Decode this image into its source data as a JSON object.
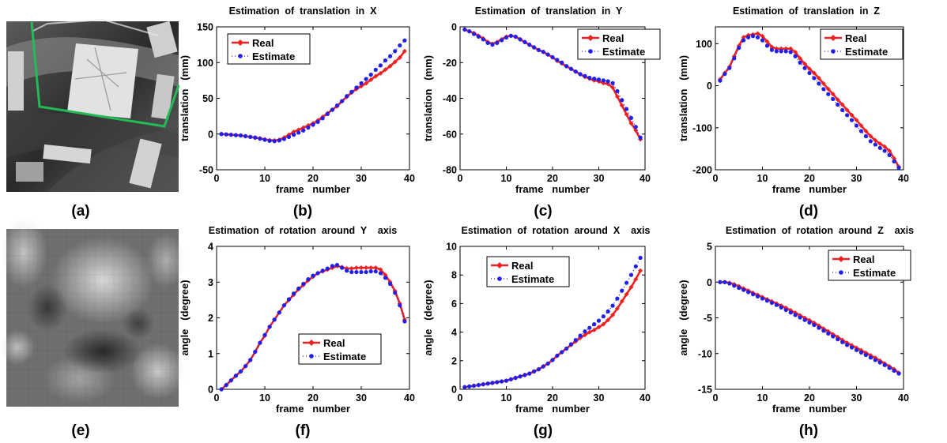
{
  "figure_labels": [
    "(a)",
    "(b)",
    "(c)",
    "(d)",
    "(e)",
    "(f)",
    "(g)",
    "(h)"
  ],
  "images": [
    {
      "label": "(a)",
      "description": "grayscale photo of a textured planar scene with a green outlined quadrilateral"
    },
    {
      "label": "(e)",
      "description": "blurry low-resolution grayscale patch"
    }
  ],
  "colors": {
    "real": "#ee2222",
    "estimate": "#1f1fee",
    "green_outline": "#22bb55"
  },
  "chart_data": [
    {
      "type": "line",
      "label": "(b)",
      "title": "Estimation  of  translation  in  X",
      "xlabel": "frame   number",
      "ylabel": "translation   (mm)",
      "xlim": [
        0,
        40
      ],
      "ylim": [
        -50,
        150
      ],
      "xticks": [
        0,
        10,
        20,
        30,
        40
      ],
      "yticks": [
        -50,
        0,
        50,
        100,
        150
      ],
      "legend": [
        "Real",
        "Estimate"
      ],
      "legend_position": "top-left",
      "x": [
        1,
        2,
        3,
        4,
        5,
        6,
        7,
        8,
        9,
        10,
        11,
        12,
        13,
        14,
        15,
        16,
        17,
        18,
        19,
        20,
        21,
        22,
        23,
        24,
        25,
        26,
        27,
        28,
        29,
        30,
        31,
        32,
        33,
        34,
        35,
        36,
        37,
        38,
        39
      ],
      "series": [
        {
          "name": "Real",
          "values": [
            0,
            -0.5,
            -1,
            -1.5,
            -2,
            -3,
            -4,
            -5,
            -6,
            -7.5,
            -8.5,
            -9,
            -8,
            -5,
            -1,
            3,
            6,
            9,
            12,
            15,
            19,
            24,
            29,
            34,
            39,
            46,
            52,
            58,
            63,
            67,
            71,
            76,
            81,
            85,
            90,
            95,
            101,
            107,
            116
          ]
        },
        {
          "name": "Estimate",
          "values": [
            0,
            -0.5,
            -1,
            -1.5,
            -2,
            -3,
            -4,
            -5,
            -6.5,
            -8,
            -9.5,
            -10,
            -9,
            -7,
            -4,
            -1,
            2,
            5,
            9,
            13,
            17,
            22,
            28,
            34,
            40,
            46,
            53,
            59,
            65,
            71,
            77,
            83,
            90,
            96,
            103,
            109,
            116,
            124,
            131
          ]
        }
      ]
    },
    {
      "type": "line",
      "label": "(c)",
      "title": "Estimation  of  translation  in  Y",
      "xlabel": "frame   number",
      "ylabel": "translation   (mm)",
      "xlim": [
        0,
        40
      ],
      "ylim": [
        -80,
        0
      ],
      "xticks": [
        0,
        10,
        20,
        30,
        40
      ],
      "yticks": [
        -80,
        -60,
        -40,
        -20,
        0
      ],
      "legend": [
        "Real",
        "Estimate"
      ],
      "legend_position": "top-right",
      "x": [
        1,
        2,
        3,
        4,
        5,
        6,
        7,
        8,
        9,
        10,
        11,
        12,
        13,
        14,
        15,
        16,
        17,
        18,
        19,
        20,
        21,
        22,
        23,
        24,
        25,
        26,
        27,
        28,
        29,
        30,
        31,
        32,
        33,
        34,
        35,
        36,
        37,
        38,
        39
      ],
      "series": [
        {
          "name": "Real",
          "values": [
            -1.5,
            -2.5,
            -3.5,
            -5,
            -6.5,
            -8.5,
            -9.5,
            -8.5,
            -7,
            -5.5,
            -5,
            -5.5,
            -7,
            -8.5,
            -10,
            -11.5,
            -13,
            -14,
            -15.5,
            -17,
            -19,
            -20.5,
            -22,
            -23.5,
            -25,
            -26.5,
            -28,
            -29,
            -30,
            -30.5,
            -31.5,
            -32,
            -34,
            -39,
            -44,
            -49,
            -54,
            -58,
            -63
          ]
        },
        {
          "name": "Estimate",
          "values": [
            -1.5,
            -2.5,
            -4,
            -5.5,
            -7,
            -9,
            -10,
            -9,
            -7.5,
            -6,
            -5,
            -5.5,
            -7,
            -8.5,
            -10,
            -11.5,
            -13,
            -14,
            -15.5,
            -17,
            -18.5,
            -20,
            -22,
            -23.5,
            -25,
            -26.5,
            -27.5,
            -28.5,
            -29,
            -29.5,
            -30,
            -30.5,
            -31.5,
            -36,
            -41,
            -46,
            -51,
            -56,
            -62
          ]
        }
      ]
    },
    {
      "type": "line",
      "label": "(d)",
      "title": "Estimation  of  translation  in  Z",
      "xlabel": "frame   number",
      "ylabel": "translation   (mm)",
      "xlim": [
        0,
        40
      ],
      "ylim": [
        -200,
        140
      ],
      "xticks": [
        0,
        10,
        20,
        30,
        40
      ],
      "yticks": [
        -200,
        -100,
        0,
        100
      ],
      "legend": [
        "Real",
        "Estimate"
      ],
      "legend_position": "top-right",
      "x": [
        1,
        2,
        3,
        4,
        5,
        6,
        7,
        8,
        9,
        10,
        11,
        12,
        13,
        14,
        15,
        16,
        17,
        18,
        19,
        20,
        21,
        22,
        23,
        24,
        25,
        26,
        27,
        28,
        29,
        30,
        31,
        32,
        33,
        34,
        35,
        36,
        37,
        38,
        39
      ],
      "series": [
        {
          "name": "Real",
          "values": [
            15,
            30,
            45,
            70,
            95,
            115,
            120,
            122,
            124,
            118,
            105,
            92,
            88,
            88,
            88,
            88,
            80,
            65,
            52,
            40,
            30,
            18,
            5,
            -8,
            -20,
            -33,
            -45,
            -58,
            -70,
            -82,
            -95,
            -108,
            -120,
            -130,
            -138,
            -145,
            -155,
            -173,
            -193
          ]
        },
        {
          "name": "Estimate",
          "values": [
            12,
            28,
            42,
            65,
            90,
            108,
            115,
            118,
            115,
            108,
            95,
            85,
            82,
            82,
            82,
            80,
            70,
            55,
            42,
            30,
            18,
            5,
            -8,
            -20,
            -32,
            -45,
            -58,
            -70,
            -82,
            -95,
            -108,
            -120,
            -132,
            -140,
            -148,
            -155,
            -165,
            -180,
            -195
          ]
        }
      ]
    },
    {
      "type": "line",
      "label": "(f)",
      "title": "Estimation  of  rotation  around  Y    axis",
      "xlabel": "frame   number",
      "ylabel": "angle   (degree)",
      "xlim": [
        0,
        40
      ],
      "ylim": [
        0,
        4
      ],
      "xticks": [
        0,
        10,
        20,
        30,
        40
      ],
      "yticks": [
        0,
        1,
        2,
        3,
        4
      ],
      "legend": [
        "Real",
        "Estimate"
      ],
      "legend_position": "bottom-right",
      "x": [
        1,
        2,
        3,
        4,
        5,
        6,
        7,
        8,
        9,
        10,
        11,
        12,
        13,
        14,
        15,
        16,
        17,
        18,
        19,
        20,
        21,
        22,
        23,
        24,
        25,
        26,
        27,
        28,
        29,
        30,
        31,
        32,
        33,
        34,
        35,
        36,
        37,
        38,
        39
      ],
      "series": [
        {
          "name": "Real",
          "values": [
            0,
            0.12,
            0.25,
            0.38,
            0.5,
            0.65,
            0.82,
            1.05,
            1.3,
            1.5,
            1.75,
            1.95,
            2.15,
            2.35,
            2.5,
            2.65,
            2.8,
            2.92,
            3.05,
            3.15,
            3.25,
            3.3,
            3.35,
            3.4,
            3.45,
            3.42,
            3.38,
            3.38,
            3.4,
            3.4,
            3.4,
            3.4,
            3.4,
            3.35,
            3.2,
            3.0,
            2.75,
            2.4,
            1.95
          ]
        },
        {
          "name": "Estimate",
          "values": [
            0,
            0.12,
            0.25,
            0.38,
            0.5,
            0.65,
            0.82,
            1.05,
            1.3,
            1.52,
            1.75,
            1.95,
            2.15,
            2.35,
            2.52,
            2.68,
            2.82,
            2.95,
            3.08,
            3.18,
            3.25,
            3.32,
            3.38,
            3.45,
            3.48,
            3.4,
            3.32,
            3.28,
            3.28,
            3.28,
            3.28,
            3.3,
            3.3,
            3.25,
            3.12,
            2.95,
            2.7,
            2.35,
            1.9
          ]
        }
      ]
    },
    {
      "type": "line",
      "label": "(g)",
      "title": "Estimation  of  rotation  around  X    axis",
      "xlabel": "frame   number",
      "ylabel": "angle   (degree)",
      "xlim": [
        0,
        40
      ],
      "ylim": [
        0,
        10
      ],
      "xticks": [
        0,
        10,
        20,
        30,
        40
      ],
      "yticks": [
        0,
        2,
        4,
        6,
        8,
        10
      ],
      "legend": [
        "Real",
        "Estimate"
      ],
      "legend_position": "top-left",
      "x": [
        1,
        2,
        3,
        4,
        5,
        6,
        7,
        8,
        9,
        10,
        11,
        12,
        13,
        14,
        15,
        16,
        17,
        18,
        19,
        20,
        21,
        22,
        23,
        24,
        25,
        26,
        27,
        28,
        29,
        30,
        31,
        32,
        33,
        34,
        35,
        36,
        37,
        38,
        39
      ],
      "series": [
        {
          "name": "Real",
          "values": [
            0.15,
            0.2,
            0.25,
            0.3,
            0.35,
            0.4,
            0.45,
            0.5,
            0.55,
            0.6,
            0.7,
            0.8,
            0.9,
            1.0,
            1.1,
            1.25,
            1.4,
            1.6,
            1.8,
            2.05,
            2.35,
            2.6,
            2.85,
            3.1,
            3.35,
            3.6,
            3.8,
            4.0,
            4.15,
            4.35,
            4.55,
            4.85,
            5.2,
            5.65,
            6.15,
            6.65,
            7.15,
            7.7,
            8.3
          ]
        },
        {
          "name": "Estimate",
          "values": [
            0.15,
            0.2,
            0.25,
            0.3,
            0.35,
            0.4,
            0.45,
            0.5,
            0.55,
            0.6,
            0.7,
            0.8,
            0.9,
            1.0,
            1.1,
            1.25,
            1.4,
            1.6,
            1.8,
            2.05,
            2.35,
            2.6,
            2.85,
            3.15,
            3.45,
            3.75,
            4.05,
            4.3,
            4.55,
            4.8,
            5.1,
            5.45,
            5.85,
            6.35,
            6.9,
            7.45,
            8.0,
            8.6,
            9.2
          ]
        }
      ]
    },
    {
      "type": "line",
      "label": "(h)",
      "title": "Estimation  of  rotation  around  Z    axis",
      "xlabel": "frame   number",
      "ylabel": "angle   (degree)",
      "xlim": [
        0,
        40
      ],
      "ylim": [
        -15,
        5
      ],
      "xticks": [
        0,
        10,
        20,
        30,
        40
      ],
      "yticks": [
        -15,
        -10,
        -5,
        0,
        5
      ],
      "legend": [
        "Real",
        "Estimate"
      ],
      "legend_position": "top-right",
      "x": [
        1,
        2,
        3,
        4,
        5,
        6,
        7,
        8,
        9,
        10,
        11,
        12,
        13,
        14,
        15,
        16,
        17,
        18,
        19,
        20,
        21,
        22,
        23,
        24,
        25,
        26,
        27,
        28,
        29,
        30,
        31,
        32,
        33,
        34,
        35,
        36,
        37,
        38,
        39
      ],
      "series": [
        {
          "name": "Real",
          "values": [
            0,
            0,
            -0.1,
            -0.3,
            -0.6,
            -0.9,
            -1.2,
            -1.5,
            -1.8,
            -2.1,
            -2.4,
            -2.7,
            -3.0,
            -3.3,
            -3.6,
            -3.95,
            -4.3,
            -4.65,
            -5.0,
            -5.35,
            -5.7,
            -6.1,
            -6.5,
            -6.9,
            -7.3,
            -7.7,
            -8.1,
            -8.5,
            -8.85,
            -9.2,
            -9.55,
            -9.9,
            -10.25,
            -10.6,
            -11.0,
            -11.4,
            -11.8,
            -12.2,
            -12.7
          ]
        },
        {
          "name": "Estimate",
          "values": [
            0,
            0,
            -0.2,
            -0.5,
            -0.8,
            -1.1,
            -1.4,
            -1.7,
            -2.0,
            -2.3,
            -2.6,
            -2.9,
            -3.2,
            -3.55,
            -3.9,
            -4.25,
            -4.6,
            -4.95,
            -5.3,
            -5.65,
            -6.0,
            -6.4,
            -6.8,
            -7.2,
            -7.6,
            -8.0,
            -8.4,
            -8.8,
            -9.15,
            -9.5,
            -9.85,
            -10.2,
            -10.55,
            -10.9,
            -11.25,
            -11.6,
            -12.0,
            -12.4,
            -12.8
          ]
        }
      ]
    }
  ]
}
